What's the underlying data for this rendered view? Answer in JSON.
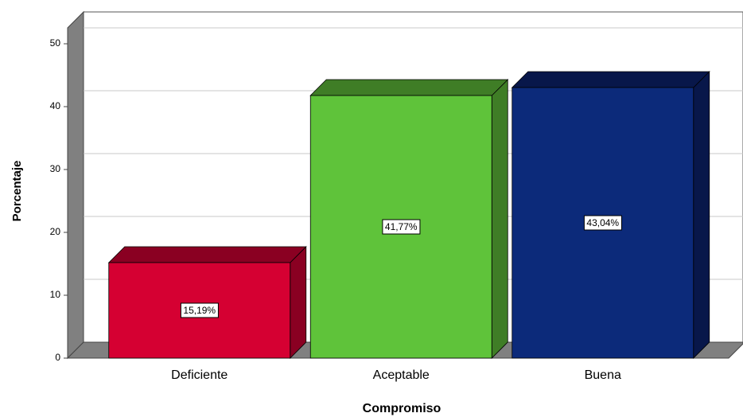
{
  "chart_data": {
    "type": "bar3d",
    "x_label": "Compromiso",
    "y_label": "Porcentaje",
    "categories": [
      "Deficiente",
      "Aceptable",
      "Buena"
    ],
    "values": [
      15.19,
      41.77,
      43.04
    ],
    "value_labels": [
      "15,19%",
      "41,77%",
      "43,04%"
    ],
    "colors": [
      "#d50032",
      "#5fc33a",
      "#0c2a7a"
    ],
    "side_colors": [
      "#8a0022",
      "#3f7d26",
      "#08174a"
    ],
    "ylim": [
      0,
      55
    ],
    "yticks": [
      0,
      10,
      20,
      30,
      40,
      50
    ],
    "grid": true
  }
}
